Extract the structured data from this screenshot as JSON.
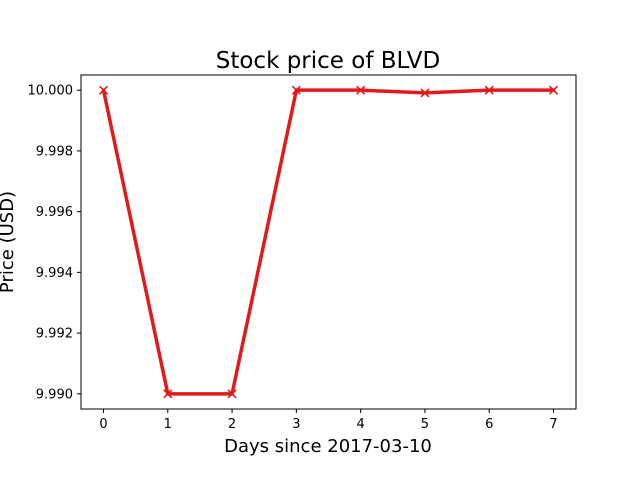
{
  "chart_data": {
    "type": "line",
    "title": "Stock price of BLVD",
    "xlabel": "Days since 2017-03-10",
    "ylabel": "Price (USD)",
    "x": [
      0,
      1,
      2,
      3,
      4,
      5,
      6,
      7
    ],
    "series": [
      {
        "values": [
          10.0,
          9.99,
          9.99,
          10.0,
          10.0,
          9.99991,
          10.0,
          10.0
        ],
        "color": "#e31a1c",
        "marker": "x"
      }
    ],
    "xlim": [
      -0.35,
      7.35
    ],
    "ylim": [
      9.9895,
      10.0005
    ],
    "xticks": [
      0,
      1,
      2,
      3,
      4,
      5,
      6,
      7
    ],
    "xtick_labels": [
      "0",
      "1",
      "2",
      "3",
      "4",
      "5",
      "6",
      "7"
    ],
    "yticks": [
      9.99,
      9.992,
      9.994,
      9.996,
      9.998,
      10.0
    ],
    "ytick_labels": [
      "9.990",
      "9.992",
      "9.994",
      "9.996",
      "9.998",
      "10.000"
    ],
    "grid": false,
    "legend": false
  }
}
